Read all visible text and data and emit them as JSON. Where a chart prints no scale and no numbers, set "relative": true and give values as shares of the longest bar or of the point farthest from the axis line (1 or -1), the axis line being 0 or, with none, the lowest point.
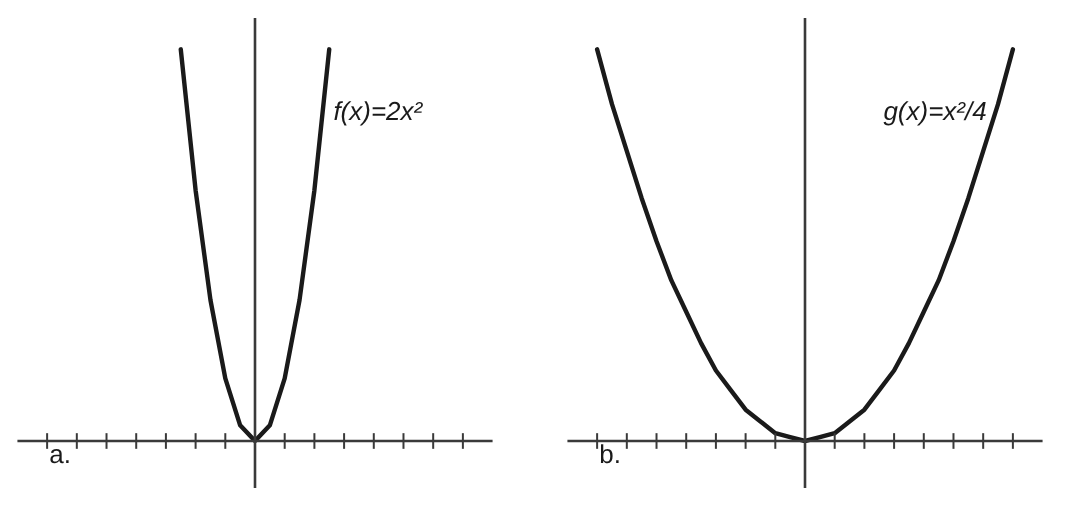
{
  "chart_data": [
    {
      "type": "line",
      "relative": true,
      "color": "#1a1a1a",
      "annotations": [
        "f(x)=2x²",
        "a."
      ],
      "categories": [
        null,
        null,
        null,
        null,
        null,
        null,
        null,
        null,
        null,
        null,
        null
      ],
      "values": [
        1,
        0.64,
        0.36,
        0.16,
        0.04,
        0,
        0.04,
        0.16,
        0.36,
        0.64,
        1
      ]
    },
    {
      "type": "line",
      "relative": true,
      "color": "#1a1a1a",
      "annotations": [
        "g(x)=x²/4",
        "b."
      ],
      "categories": [
        null,
        null,
        null,
        null,
        null,
        null,
        null,
        null,
        null,
        null,
        null,
        null,
        null,
        null,
        null,
        null,
        null,
        null,
        null,
        null,
        null,
        null,
        null,
        null,
        null,
        null,
        null,
        null,
        null
      ],
      "values": [
        1,
        0.86,
        0.74,
        0.62,
        0.51,
        0.41,
        0.33,
        0.25,
        0.18,
        0.13,
        0.08,
        0.05,
        0.02,
        0.01,
        0,
        0.01,
        0.02,
        0.05,
        0.08,
        0.13,
        0.18,
        0.25,
        0.33,
        0.41,
        0.51,
        0.62,
        0.74,
        0.86,
        1
      ]
    }
  ]
}
